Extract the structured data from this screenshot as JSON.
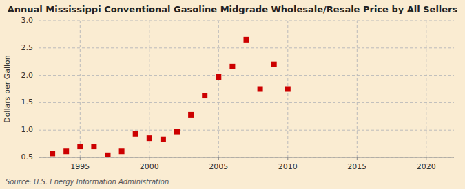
{
  "chart_data": {
    "type": "scatter",
    "title": "Annual Mississippi Conventional Gasoline Midgrade Wholesale/Resale Price by All Sellers",
    "y_label": "Dollars per Gallon",
    "annotations": [
      "Source: U.S. Energy Information Administration"
    ],
    "x": [
      1993,
      1994,
      1995,
      1996,
      1997,
      1998,
      1999,
      2000,
      2001,
      2002,
      2003,
      2004,
      2005,
      2006,
      2007,
      2008,
      2009,
      2010
    ],
    "values": [
      0.57,
      0.61,
      0.7,
      0.7,
      0.54,
      0.61,
      0.93,
      0.85,
      0.83,
      0.97,
      1.28,
      1.63,
      1.97,
      2.16,
      2.65,
      1.75,
      2.2,
      1.75
    ],
    "color": "#cc0000",
    "marker": "square",
    "xlim": [
      1992,
      2022
    ],
    "ylim": [
      0.5,
      3.0
    ],
    "xticks": [
      1995,
      2000,
      2005,
      2010,
      2015,
      2020
    ],
    "yticks": [
      0.5,
      {
        "value": 1.0,
        "label": "1.0"
      },
      1.5,
      {
        "value": 2.0,
        "label": "2.0"
      },
      2.5,
      {
        "value": 3.0,
        "label": "3.0"
      }
    ],
    "grid": true
  }
}
